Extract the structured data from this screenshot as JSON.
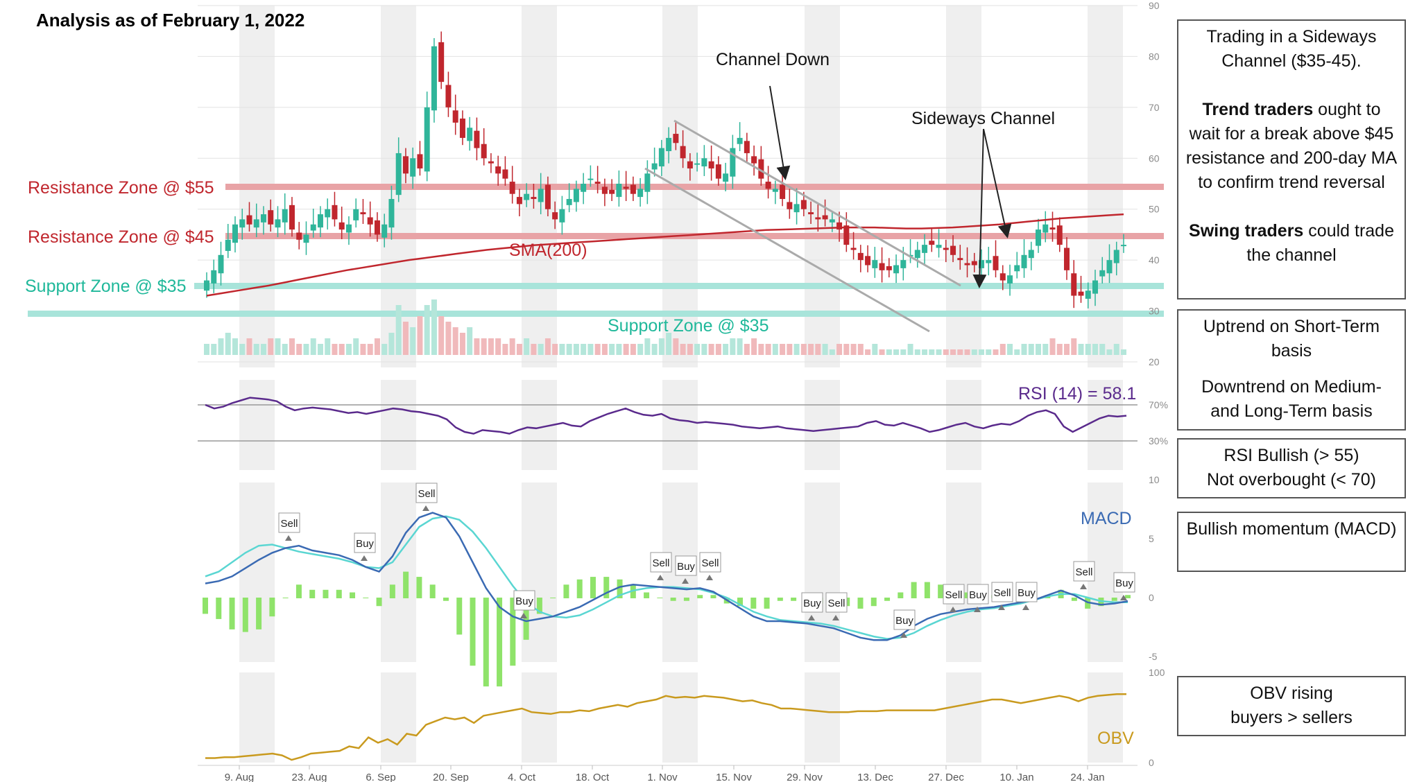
{
  "title": "Analysis as of February 1, 2022",
  "colors": {
    "resistance": "#c0262d",
    "resistance_band": "#e8a3a6",
    "support": "#1fb89a",
    "support_band": "#a8e4da",
    "sma": "#c0262d",
    "candle_up": "#2fb59a",
    "candle_down": "#c0262d",
    "rsi": "#5a2a8c",
    "macd": "#3a6ab3",
    "signal": "#5ad6d2",
    "histogram": "#8fe36a",
    "obv": "#c99a1e",
    "shade": "#efefef"
  },
  "annotations": {
    "resistance55": "Resistance Zone @ $55",
    "resistance45": "Resistance Zone @ $45",
    "support35_left": "Support Zone @ $35",
    "support35_mid": "Support Zone @ $35",
    "sma": "SMA(200)",
    "channel_down": "Channel Down",
    "sideways": "Sideways Channel",
    "rsi": "RSI (14) = 58.1",
    "macd": "MACD",
    "obv": "OBV"
  },
  "boxes": {
    "b1_line1": "Trading in a Sideways Channel ($35-45).",
    "b1_trend_bold": "Trend traders",
    "b1_trend_rest": " ought to wait for a break above $45 resistance and 200-day MA to confirm trend reversal",
    "b1_swing_bold": "Swing traders",
    "b1_swing_rest": " could trade the channel",
    "b2_line1": "Uptrend on Short-Term basis",
    "b2_line2": "Downtrend on Medium- and Long-Term basis",
    "b3_line1": "RSI Bullish (> 55)",
    "b3_line2": "Not overbought (< 70)",
    "b4_line1": "Bullish momentum (MACD)",
    "b5_line1": "OBV rising",
    "b5_line2": "buyers > sellers"
  },
  "chart_data": [
    {
      "type": "candlestick",
      "panel": "price",
      "x_ticks": [
        "9. Aug",
        "23. Aug",
        "6. Sep",
        "20. Sep",
        "4. Oct",
        "18. Oct",
        "1. Nov",
        "15. Nov",
        "29. Nov",
        "13. Dec",
        "27. Dec",
        "10. Jan",
        "24. Jan"
      ],
      "y_ticks": [
        20,
        30,
        40,
        50,
        60,
        70,
        80,
        90
      ],
      "ylim": [
        20,
        90
      ],
      "close": [
        36,
        38,
        41,
        44,
        47,
        48,
        47,
        48,
        49,
        47,
        48,
        50,
        46,
        44,
        45,
        47,
        49,
        50,
        48,
        46,
        47,
        50,
        49,
        47,
        45,
        47,
        52,
        61,
        57,
        60,
        58,
        70,
        82,
        75,
        70,
        67,
        64,
        66,
        62,
        60,
        59,
        57,
        56,
        53,
        51,
        53,
        52,
        54,
        50,
        48,
        50,
        52,
        54,
        55,
        56,
        55,
        53,
        53,
        55,
        54,
        53,
        54,
        57,
        59,
        62,
        64,
        63,
        60,
        58,
        59,
        60,
        58,
        56,
        57,
        62,
        64,
        61,
        59,
        56,
        54,
        54,
        52,
        50,
        51,
        50,
        49,
        48,
        48,
        48,
        46,
        43,
        42,
        40,
        39,
        40,
        38,
        38,
        39,
        40,
        41,
        42,
        43,
        43,
        43,
        42,
        41,
        40,
        39,
        39,
        40,
        40,
        38,
        36,
        37,
        39,
        41,
        42,
        46,
        47,
        46,
        43,
        38,
        33,
        33,
        34,
        36,
        38,
        40,
        42,
        43
      ]
    },
    {
      "type": "line",
      "panel": "price",
      "name": "SMA(200)",
      "values": [
        33.0,
        33.5,
        34.0,
        34.5,
        35.0,
        35.6,
        36.2,
        36.8,
        37.4,
        38.0,
        38.5,
        39.0,
        39.5,
        40.0,
        40.4,
        40.8,
        41.2,
        41.6,
        42.0,
        42.3,
        42.6,
        42.9,
        43.1,
        43.3,
        43.5,
        43.7,
        43.9,
        44.1,
        44.3,
        44.5,
        44.7,
        44.9,
        45.1,
        45.3,
        45.5,
        45.7,
        45.9,
        46.0,
        46.1,
        46.2,
        46.3,
        46.4,
        46.4,
        46.4,
        46.3,
        46.2,
        46.2,
        46.3,
        46.4,
        46.6,
        46.8,
        47.0,
        47.3,
        47.6,
        47.9,
        48.2,
        48.4,
        48.6,
        48.8,
        49.0
      ]
    },
    {
      "type": "bar",
      "panel": "volume",
      "values": [
        2,
        2,
        3,
        4,
        3,
        2,
        3,
        2,
        2,
        3,
        3,
        2,
        3,
        2,
        2,
        3,
        2,
        3,
        2,
        2,
        2,
        3,
        2,
        2,
        3,
        2,
        4,
        9,
        6,
        5,
        7,
        9,
        10,
        7,
        6,
        5,
        4,
        5,
        3,
        3,
        3,
        3,
        2,
        3,
        2,
        3,
        2,
        2,
        3,
        2,
        2,
        2,
        2,
        2,
        2,
        2,
        2,
        2,
        2,
        2,
        2,
        2,
        3,
        2,
        3,
        4,
        3,
        2,
        2,
        2,
        2,
        2,
        2,
        2,
        3,
        3,
        2,
        3,
        2,
        2,
        2,
        2,
        2,
        2,
        2,
        2,
        2,
        2,
        1,
        2,
        2,
        2,
        2,
        1,
        2,
        1,
        1,
        1,
        1,
        2,
        1,
        1,
        1,
        1,
        1,
        1,
        1,
        1,
        1,
        1,
        1,
        1,
        2,
        2,
        1,
        2,
        2,
        2,
        2,
        3,
        2,
        2,
        3,
        2,
        2,
        2,
        2,
        1,
        2,
        1
      ]
    },
    {
      "type": "line",
      "panel": "rsi",
      "name": "RSI (14)",
      "y_ticks": [
        "70%",
        "30%"
      ],
      "values": [
        70,
        66,
        68,
        72,
        75,
        78,
        77,
        76,
        74,
        68,
        64,
        66,
        67,
        66,
        65,
        63,
        61,
        62,
        60,
        62,
        64,
        66,
        65,
        63,
        62,
        60,
        58,
        54,
        45,
        40,
        38,
        42,
        41,
        40,
        38,
        42,
        45,
        44,
        46,
        48,
        50,
        47,
        46,
        52,
        56,
        60,
        63,
        66,
        62,
        59,
        58,
        60,
        55,
        53,
        52,
        50,
        51,
        50,
        49,
        48,
        46,
        45,
        44,
        45,
        46,
        44,
        43,
        42,
        41,
        42,
        43,
        44,
        45,
        46,
        50,
        52,
        48,
        47,
        50,
        47,
        44,
        40,
        42,
        45,
        48,
        50,
        46,
        44,
        47,
        49,
        48,
        52,
        58,
        62,
        64,
        60,
        46,
        40,
        45,
        50,
        55,
        58,
        57,
        58
      ]
    },
    {
      "type": "line",
      "panel": "macd",
      "name": "MACD",
      "y_ticks": [
        10,
        5,
        0,
        -5
      ],
      "signals": [
        {
          "label": "Sell"
        },
        {
          "label": "Buy"
        },
        {
          "label": "Sell"
        },
        {
          "label": "Buy"
        },
        {
          "label": "Sell"
        },
        {
          "label": "Buy"
        },
        {
          "label": "Sell"
        },
        {
          "label": "Buy"
        },
        {
          "label": "Sell"
        },
        {
          "label": "Buy"
        },
        {
          "label": "Sell"
        },
        {
          "label": "Buy"
        },
        {
          "label": "Sell"
        },
        {
          "label": "Buy"
        },
        {
          "label": "Sell"
        },
        {
          "label": "Buy"
        }
      ],
      "macd": [
        1.2,
        1.4,
        1.8,
        2.5,
        3.2,
        3.8,
        4.2,
        4.4,
        4.0,
        3.8,
        3.6,
        3.2,
        2.6,
        2.2,
        3.5,
        5.5,
        6.8,
        7.2,
        6.8,
        5.2,
        3.0,
        0.8,
        -0.8,
        -1.6,
        -2.0,
        -1.8,
        -1.6,
        -1.2,
        -0.8,
        -0.2,
        0.4,
        0.9,
        1.1,
        1.0,
        0.9,
        0.8,
        0.7,
        0.8,
        0.5,
        -0.2,
        -0.9,
        -1.6,
        -2.0,
        -2.0,
        -2.1,
        -2.2,
        -2.4,
        -2.6,
        -3.0,
        -3.4,
        -3.6,
        -3.6,
        -3.2,
        -2.4,
        -1.8,
        -1.4,
        -1.2,
        -1.0,
        -0.9,
        -0.8,
        -0.6,
        -0.4,
        -0.2,
        0.2,
        0.6,
        0.2,
        -0.4,
        -0.6,
        -0.5,
        -0.3
      ],
      "signal": [
        1.8,
        2.2,
        3.0,
        3.8,
        4.4,
        4.5,
        4.2,
        3.9,
        3.7,
        3.5,
        3.3,
        3.0,
        2.6,
        2.5,
        3.0,
        4.5,
        6.0,
        6.7,
        6.9,
        6.6,
        5.6,
        4.2,
        2.6,
        1.0,
        -0.4,
        -1.2,
        -1.6,
        -1.7,
        -1.5,
        -1.0,
        -0.4,
        0.2,
        0.6,
        0.8,
        0.9,
        0.9,
        0.8,
        0.7,
        0.4,
        0.0,
        -0.6,
        -1.2,
        -1.6,
        -1.9,
        -2.0,
        -2.1,
        -2.2,
        -2.4,
        -2.7,
        -3.0,
        -3.3,
        -3.5,
        -3.4,
        -3.0,
        -2.4,
        -1.9,
        -1.5,
        -1.2,
        -1.0,
        -0.9,
        -0.7,
        -0.5,
        -0.2,
        0.1,
        0.3,
        0.3,
        0.0,
        -0.3,
        -0.4,
        -0.4
      ]
    },
    {
      "type": "line",
      "panel": "obv",
      "name": "OBV",
      "y_ticks": [
        100,
        0
      ],
      "values": [
        5,
        5,
        6,
        6,
        7,
        8,
        9,
        10,
        8,
        3,
        6,
        10,
        11,
        12,
        13,
        18,
        16,
        28,
        22,
        26,
        20,
        32,
        30,
        42,
        46,
        50,
        48,
        50,
        44,
        52,
        54,
        56,
        58,
        60,
        56,
        55,
        54,
        56,
        56,
        58,
        57,
        60,
        62,
        64,
        62,
        66,
        68,
        70,
        74,
        72,
        73,
        72,
        74,
        73,
        72,
        70,
        68,
        69,
        66,
        64,
        60,
        60,
        59,
        58,
        57,
        56,
        56,
        56,
        57,
        57,
        57,
        58,
        58,
        58,
        58,
        58,
        58,
        60,
        62,
        64,
        66,
        68,
        70,
        70,
        68,
        66,
        68,
        70,
        72,
        74,
        72,
        68,
        72,
        74,
        75,
        76,
        76
      ]
    }
  ]
}
